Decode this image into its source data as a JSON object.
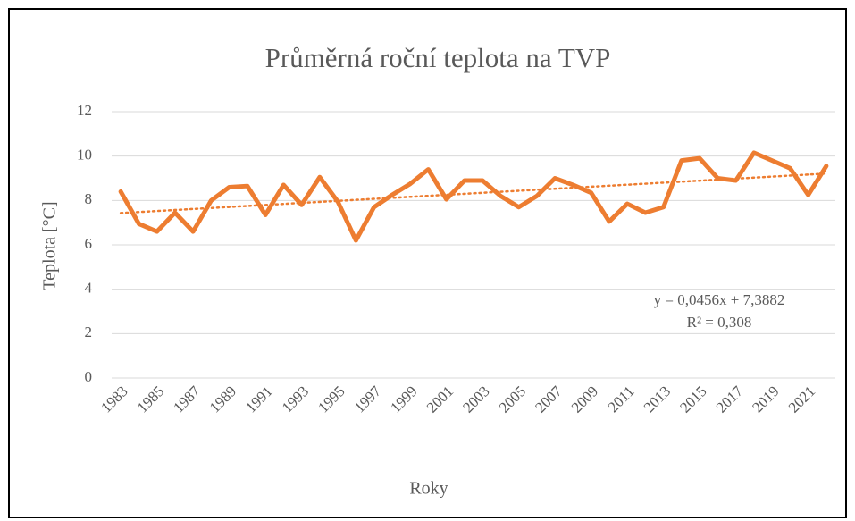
{
  "chart_data": {
    "type": "line",
    "title": "Průměrná roční teplota na TVP",
    "x_label": "Roky",
    "y_label": "Teplota [°C]",
    "categories": [
      "1983",
      null,
      "1985",
      null,
      "1987",
      null,
      "1989",
      null,
      "1991",
      null,
      "1993",
      null,
      "1995",
      null,
      "1997",
      null,
      "1999",
      null,
      "2001",
      null,
      "2003",
      null,
      "2005",
      null,
      "2007",
      null,
      "2009",
      null,
      "2011",
      null,
      "2013",
      null,
      "2015",
      null,
      "2017",
      null,
      "2019",
      null,
      "2021",
      null
    ],
    "series": [
      {
        "name": "Teplota",
        "color": "#ed7d31",
        "values": [
          8.4,
          6.95,
          6.6,
          7.45,
          6.6,
          8.0,
          8.6,
          8.65,
          7.35,
          8.7,
          7.8,
          9.05,
          7.95,
          6.2,
          7.7,
          8.25,
          8.75,
          9.4,
          8.05,
          8.9,
          8.9,
          8.2,
          7.7,
          8.2,
          9.0,
          8.7,
          8.35,
          7.05,
          7.85,
          7.45,
          7.7,
          9.8,
          9.9,
          9.0,
          8.9,
          10.15,
          9.8,
          9.45,
          8.25,
          9.55
        ]
      }
    ],
    "trendline": {
      "slope": 0.0456,
      "intercept": 7.3882,
      "r2": 0.308,
      "equation": "y = 0,0456x + 7,3882",
      "r2_label": "R² = 0,308",
      "color": "#ed7d31"
    },
    "ylim": [
      0,
      12
    ],
    "yticks": [
      0,
      2,
      4,
      6,
      8,
      10,
      12
    ],
    "grid": true
  }
}
